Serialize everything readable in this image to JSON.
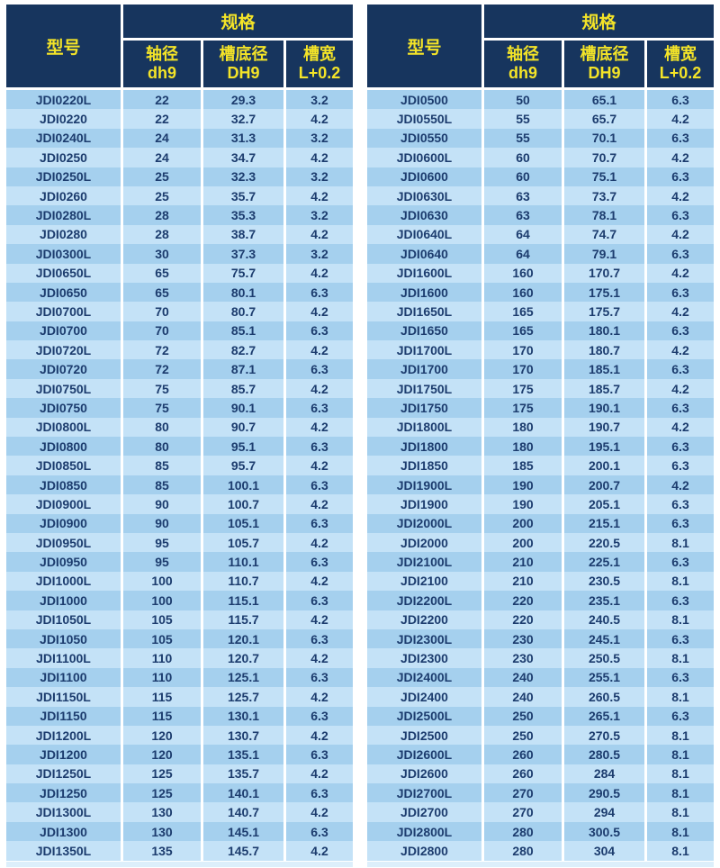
{
  "colors": {
    "header_bg": "#17355e",
    "header_text": "#f4e428",
    "row_odd": "#a5d0ee",
    "row_even": "#c4e2f7",
    "cell_text": "#1c3c6e",
    "bottom_strip": "#ddeffb"
  },
  "header": {
    "model": "型号",
    "spec": "规格",
    "shaft_line1": "轴径",
    "shaft_line2": "dh9",
    "groove_line1": "槽底径",
    "groove_line2": "DH9",
    "width_line1": "槽宽",
    "width_line2": "L+0.2"
  },
  "left_table": {
    "rows": [
      [
        "JDI0220L",
        "22",
        "29.3",
        "3.2"
      ],
      [
        "JDI0220",
        "22",
        "32.7",
        "4.2"
      ],
      [
        "JDI0240L",
        "24",
        "31.3",
        "3.2"
      ],
      [
        "JDI0250",
        "24",
        "34.7",
        "4.2"
      ],
      [
        "JDI0250L",
        "25",
        "32.3",
        "3.2"
      ],
      [
        "JDI0260",
        "25",
        "35.7",
        "4.2"
      ],
      [
        "JDI0280L",
        "28",
        "35.3",
        "3.2"
      ],
      [
        "JDI0280",
        "28",
        "38.7",
        "4.2"
      ],
      [
        "JDI0300L",
        "30",
        "37.3",
        "3.2"
      ],
      [
        "JDI0650L",
        "65",
        "75.7",
        "4.2"
      ],
      [
        "JDI0650",
        "65",
        "80.1",
        "6.3"
      ],
      [
        "JDI0700L",
        "70",
        "80.7",
        "4.2"
      ],
      [
        "JDI0700",
        "70",
        "85.1",
        "6.3"
      ],
      [
        "JDI0720L",
        "72",
        "82.7",
        "4.2"
      ],
      [
        "JDI0720",
        "72",
        "87.1",
        "6.3"
      ],
      [
        "JDI0750L",
        "75",
        "85.7",
        "4.2"
      ],
      [
        "JDI0750",
        "75",
        "90.1",
        "6.3"
      ],
      [
        "JDI0800L",
        "80",
        "90.7",
        "4.2"
      ],
      [
        "JDI0800",
        "80",
        "95.1",
        "6.3"
      ],
      [
        "JDI0850L",
        "85",
        "95.7",
        "4.2"
      ],
      [
        "JDI0850",
        "85",
        "100.1",
        "6.3"
      ],
      [
        "JDI0900L",
        "90",
        "100.7",
        "4.2"
      ],
      [
        "JDI0900",
        "90",
        "105.1",
        "6.3"
      ],
      [
        "JDI0950L",
        "95",
        "105.7",
        "4.2"
      ],
      [
        "JDI0950",
        "95",
        "110.1",
        "6.3"
      ],
      [
        "JDI1000L",
        "100",
        "110.7",
        "4.2"
      ],
      [
        "JDI1000",
        "100",
        "115.1",
        "6.3"
      ],
      [
        "JDI1050L",
        "105",
        "115.7",
        "4.2"
      ],
      [
        "JDI1050",
        "105",
        "120.1",
        "6.3"
      ],
      [
        "JDI1100L",
        "110",
        "120.7",
        "4.2"
      ],
      [
        "JDI1100",
        "110",
        "125.1",
        "6.3"
      ],
      [
        "JDI1150L",
        "115",
        "125.7",
        "4.2"
      ],
      [
        "JDI1150",
        "115",
        "130.1",
        "6.3"
      ],
      [
        "JDI1200L",
        "120",
        "130.7",
        "4.2"
      ],
      [
        "JDI1200",
        "120",
        "135.1",
        "6.3"
      ],
      [
        "JDI1250L",
        "125",
        "135.7",
        "4.2"
      ],
      [
        "JDI1250",
        "125",
        "140.1",
        "6.3"
      ],
      [
        "JDI1300L",
        "130",
        "140.7",
        "4.2"
      ],
      [
        "JDI1300",
        "130",
        "145.1",
        "6.3"
      ],
      [
        "JDI1350L",
        "135",
        "145.7",
        "4.2"
      ]
    ]
  },
  "right_table": {
    "rows": [
      [
        "JDI0500",
        "50",
        "65.1",
        "6.3"
      ],
      [
        "JDI0550L",
        "55",
        "65.7",
        "4.2"
      ],
      [
        "JDI0550",
        "55",
        "70.1",
        "6.3"
      ],
      [
        "JDI0600L",
        "60",
        "70.7",
        "4.2"
      ],
      [
        "JDI0600",
        "60",
        "75.1",
        "6.3"
      ],
      [
        "JDI0630L",
        "63",
        "73.7",
        "4.2"
      ],
      [
        "JDI0630",
        "63",
        "78.1",
        "6.3"
      ],
      [
        "JDI0640L",
        "64",
        "74.7",
        "4.2"
      ],
      [
        "JDI0640",
        "64",
        "79.1",
        "6.3"
      ],
      [
        "JDI1600L",
        "160",
        "170.7",
        "4.2"
      ],
      [
        "JDI1600",
        "160",
        "175.1",
        "6.3"
      ],
      [
        "JDI1650L",
        "165",
        "175.7",
        "4.2"
      ],
      [
        "JDI1650",
        "165",
        "180.1",
        "6.3"
      ],
      [
        "JDI1700L",
        "170",
        "180.7",
        "4.2"
      ],
      [
        "JDI1700",
        "170",
        "185.1",
        "6.3"
      ],
      [
        "JDI1750L",
        "175",
        "185.7",
        "4.2"
      ],
      [
        "JDI1750",
        "175",
        "190.1",
        "6.3"
      ],
      [
        "JDI1800L",
        "180",
        "190.7",
        "4.2"
      ],
      [
        "JDI1800",
        "180",
        "195.1",
        "6.3"
      ],
      [
        "JDI1850",
        "185",
        "200.1",
        "6.3"
      ],
      [
        "JDI1900L",
        "190",
        "200.7",
        "4.2"
      ],
      [
        "JDI1900",
        "190",
        "205.1",
        "6.3"
      ],
      [
        "JDI2000L",
        "200",
        "215.1",
        "6.3"
      ],
      [
        "JDI2000",
        "200",
        "220.5",
        "8.1"
      ],
      [
        "JDI2100L",
        "210",
        "225.1",
        "6.3"
      ],
      [
        "JDI2100",
        "210",
        "230.5",
        "8.1"
      ],
      [
        "JDI2200L",
        "220",
        "235.1",
        "6.3"
      ],
      [
        "JDI2200",
        "220",
        "240.5",
        "8.1"
      ],
      [
        "JDI2300L",
        "230",
        "245.1",
        "6.3"
      ],
      [
        "JDI2300",
        "230",
        "250.5",
        "8.1"
      ],
      [
        "JDI2400L",
        "240",
        "255.1",
        "6.3"
      ],
      [
        "JDI2400",
        "240",
        "260.5",
        "8.1"
      ],
      [
        "JDI2500L",
        "250",
        "265.1",
        "6.3"
      ],
      [
        "JDI2500",
        "250",
        "270.5",
        "8.1"
      ],
      [
        "JDI2600L",
        "260",
        "280.5",
        "8.1"
      ],
      [
        "JDI2600",
        "260",
        "284",
        "8.1"
      ],
      [
        "JDI2700L",
        "270",
        "290.5",
        "8.1"
      ],
      [
        "JDI2700",
        "270",
        "294",
        "8.1"
      ],
      [
        "JDI2800L",
        "280",
        "300.5",
        "8.1"
      ],
      [
        "JDI2800",
        "280",
        "304",
        "8.1"
      ]
    ]
  }
}
